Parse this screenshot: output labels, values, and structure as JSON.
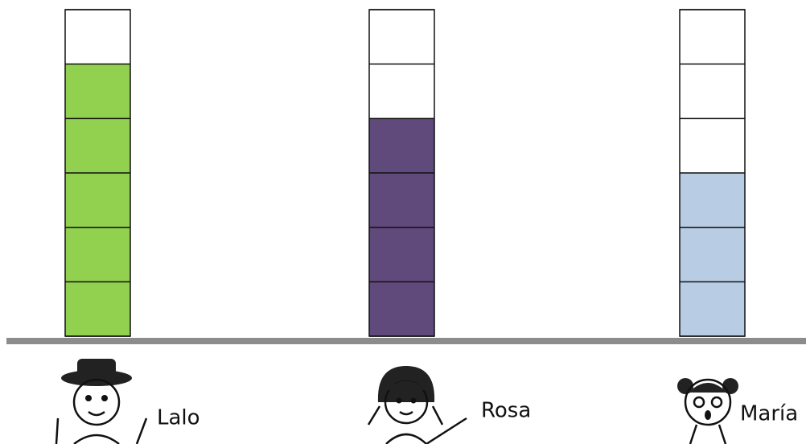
{
  "chart_data": {
    "type": "bar",
    "categories": [
      "Lalo",
      "Rosa",
      "María"
    ],
    "values": [
      5,
      4,
      3
    ],
    "colors": [
      "#92d050",
      "#604a7b",
      "#b8cce4"
    ],
    "ylim": [
      0,
      6
    ]
  }
}
